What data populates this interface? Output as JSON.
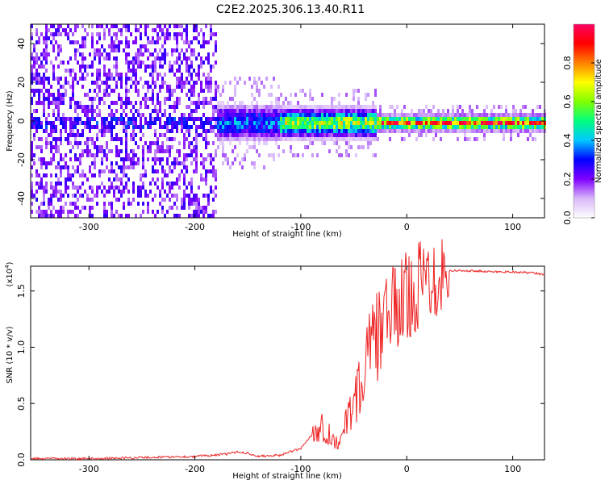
{
  "chart_data": [
    {
      "type": "heatmap",
      "title": "C2E2.2025.306.13.40.R11",
      "xlabel": "Height of straight line (km)",
      "ylabel": "Frequency (Hz)",
      "xlim": [
        -355,
        130
      ],
      "ylim": [
        -50,
        50
      ],
      "xticks": [
        -300,
        -200,
        -100,
        0,
        100
      ],
      "xtick_labels": [
        "-300",
        "-200",
        "-100",
        "0",
        "100"
      ],
      "yticks": [
        -40,
        -20,
        0,
        20,
        40
      ],
      "ytick_labels": [
        "-40",
        "-20",
        "0",
        "20",
        "40"
      ],
      "colorbar": {
        "label": "Normalized spectral amplitude",
        "range": [
          0,
          1
        ],
        "ticks": [
          0.0,
          0.2,
          0.4,
          0.6,
          0.8
        ],
        "tick_labels": [
          "0.0",
          "0.2",
          "0.4",
          "0.6",
          "0.8"
        ],
        "colors": [
          "#ffffff",
          "#d8b8f8",
          "#8000ff",
          "#0000ff",
          "#00c8ff",
          "#00ff80",
          "#80ff00",
          "#ffff00",
          "#ff8000",
          "#ff0000",
          "#ff0060"
        ]
      },
      "regions": [
        {
          "x_from": -355,
          "x_to": -180,
          "description": "broadband noise",
          "freq_spread": 50,
          "core_amplitude": 0.3
        },
        {
          "x_from": -180,
          "x_to": -120,
          "description": "weak signal with noise",
          "freq_spread": 8,
          "core_amplitude": 0.4
        },
        {
          "x_from": -120,
          "x_to": -30,
          "description": "strengthening echo",
          "freq_spread": 6,
          "core_amplitude": 0.7
        },
        {
          "x_from": -30,
          "x_to": 130,
          "description": "strong narrow echo near 0 Hz",
          "freq_spread": 3,
          "core_amplitude": 1.0
        }
      ]
    },
    {
      "type": "line",
      "xlabel": "Height of straight line (km)",
      "ylabel": "SNR (10 * v/v)",
      "y_scale_label": "(x10",
      "y_scale_exponent": "4",
      "xlim": [
        -355,
        130
      ],
      "ylim": [
        0,
        1.72
      ],
      "xticks": [
        -300,
        -200,
        -100,
        0,
        100
      ],
      "xtick_labels": [
        "-300",
        "-200",
        "-100",
        "0",
        "100"
      ],
      "yticks": [
        0.0,
        0.5,
        1.0,
        1.5
      ],
      "ytick_labels": [
        "0.0",
        "0.5",
        "1.0",
        "1.5"
      ],
      "series": [
        {
          "name": "SNR",
          "color": "#ee2222",
          "x": [
            -355,
            -300,
            -250,
            -200,
            -170,
            -160,
            -150,
            -140,
            -120,
            -100,
            -90,
            -80,
            -75,
            -70,
            -65,
            -60,
            -55,
            -50,
            -45,
            -40,
            -35,
            -30,
            -25,
            -20,
            -15,
            -10,
            -5,
            0,
            10,
            20,
            30,
            40,
            60,
            80,
            100,
            120,
            130
          ],
          "values": [
            0.01,
            0.01,
            0.02,
            0.03,
            0.05,
            0.07,
            0.06,
            0.03,
            0.04,
            0.1,
            0.22,
            0.3,
            0.25,
            0.18,
            0.16,
            0.22,
            0.4,
            0.55,
            0.62,
            0.78,
            0.95,
            1.05,
            1.15,
            1.25,
            1.3,
            1.35,
            1.4,
            1.45,
            1.55,
            1.62,
            1.67,
            1.68,
            1.68,
            1.67,
            1.67,
            1.66,
            1.64
          ]
        }
      ]
    }
  ]
}
